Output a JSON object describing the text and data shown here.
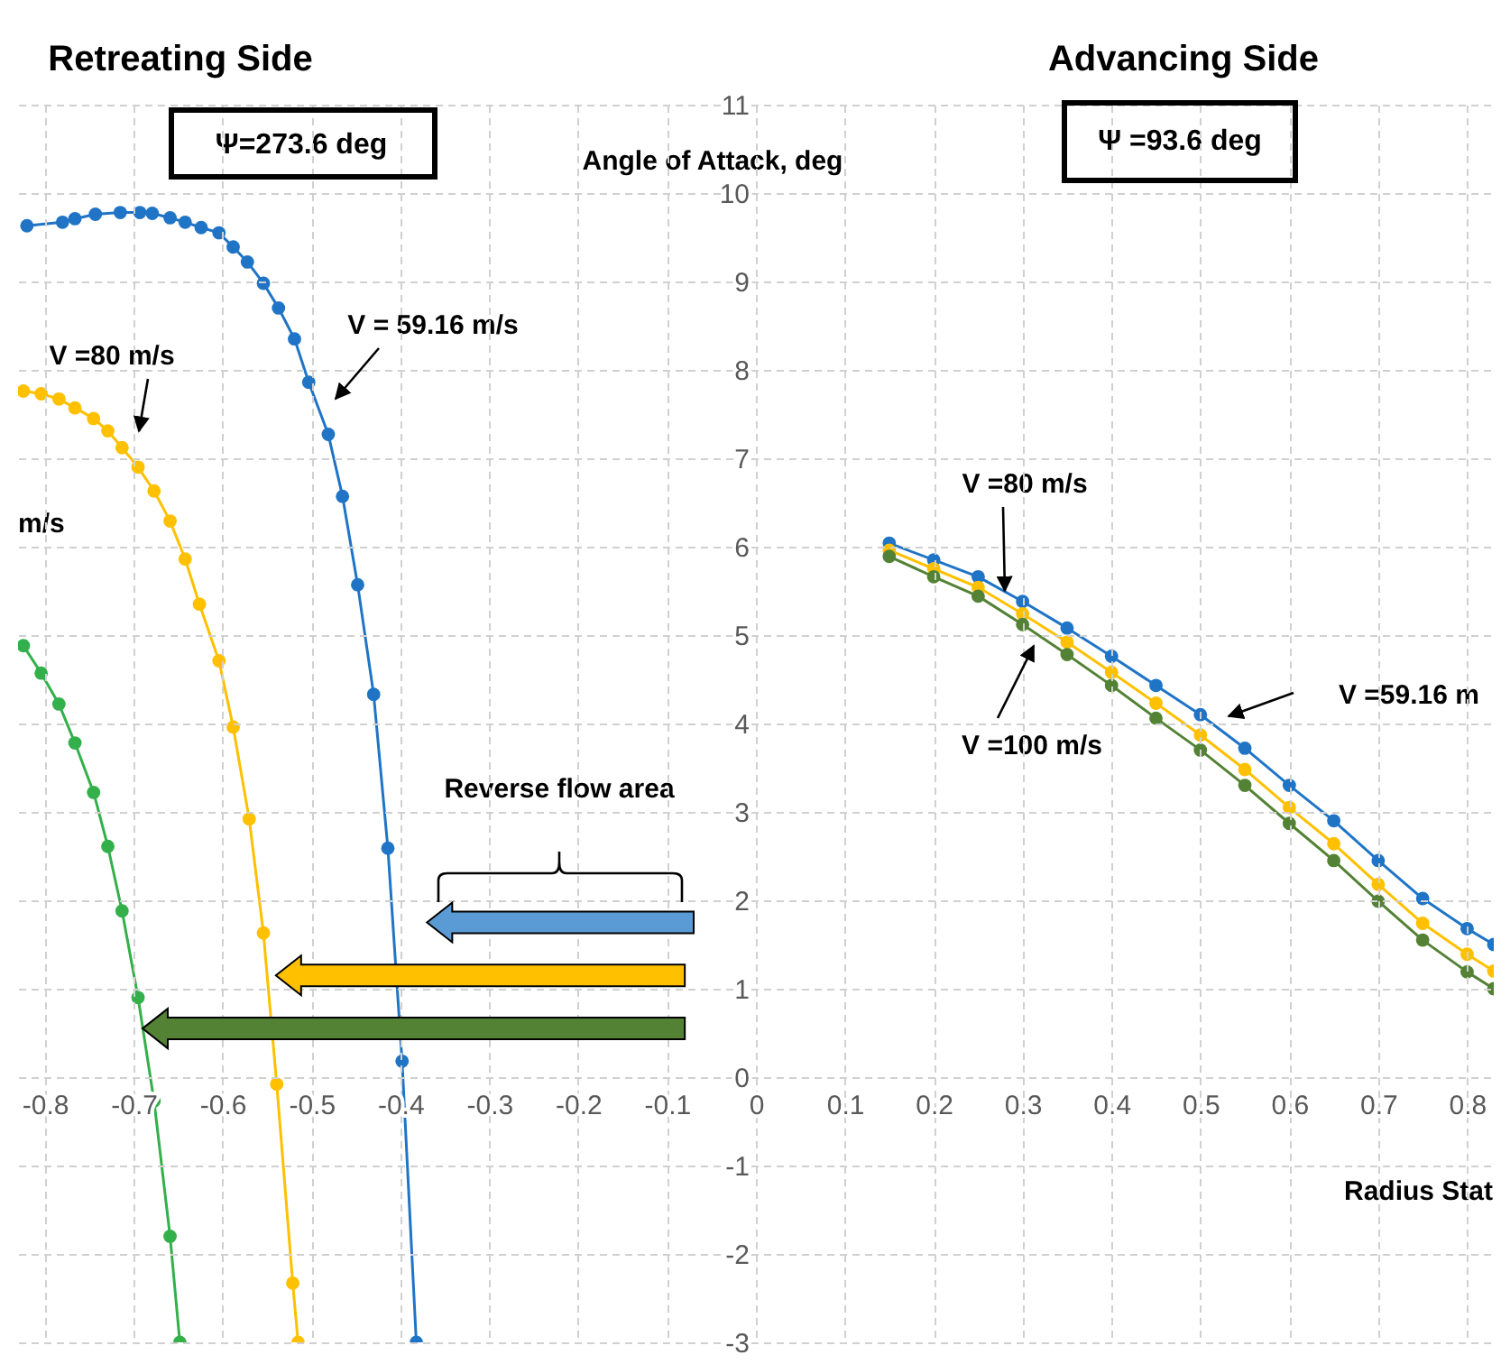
{
  "chart_data": {
    "type": "line",
    "xlabel": "Radius Stat",
    "ylabel": "Angle of Attack, deg",
    "xlim": [
      -0.83,
      0.83
    ],
    "xticks": [
      -0.8,
      -0.7,
      -0.6,
      -0.5,
      -0.4,
      -0.3,
      -0.2,
      -0.1,
      0,
      0.1,
      0.2,
      0.3,
      0.4,
      0.5,
      0.6,
      0.7,
      0.8
    ],
    "ylim": [
      -3,
      11
    ],
    "yticks": [
      -3,
      -2,
      -1,
      0,
      1,
      2,
      3,
      4,
      5,
      6,
      7,
      8,
      9,
      10,
      11
    ],
    "grid": true,
    "marker": "circle",
    "series": [
      {
        "color": "#1f74c6",
        "x": [
          -0.82,
          -0.78,
          -0.766,
          -0.743,
          -0.715,
          -0.693,
          -0.679,
          -0.659,
          -0.642,
          -0.624,
          -0.604,
          -0.588,
          -0.572,
          -0.554,
          -0.537,
          -0.519,
          -0.503,
          -0.481,
          -0.465,
          -0.448,
          -0.43,
          -0.414,
          -0.398,
          -0.382
        ],
        "values": [
          9.63,
          9.67,
          9.71,
          9.76,
          9.78,
          9.78,
          9.77,
          9.72,
          9.67,
          9.61,
          9.55,
          9.39,
          9.22,
          8.98,
          8.7,
          8.35,
          7.86,
          7.27,
          6.57,
          5.57,
          4.33,
          2.59,
          0.18,
          -3
        ]
      },
      {
        "color": "#ffc000",
        "x": [
          -0.824,
          -0.804,
          -0.784,
          -0.766,
          -0.745,
          -0.729,
          -0.713,
          -0.695,
          -0.677,
          -0.659,
          -0.642,
          -0.626,
          -0.604,
          -0.588,
          -0.57,
          -0.554,
          -0.539,
          -0.521,
          -0.515
        ],
        "values": [
          7.76,
          7.73,
          7.67,
          7.57,
          7.45,
          7.31,
          7.12,
          6.9,
          6.63,
          6.29,
          5.86,
          5.35,
          4.71,
          3.96,
          2.92,
          1.63,
          -0.08,
          -2.33,
          -3
        ]
      },
      {
        "color": "#33b04a",
        "x": [
          -0.824,
          -0.804,
          -0.784,
          -0.766,
          -0.745,
          -0.729,
          -0.713,
          -0.695,
          -0.677,
          -0.659,
          -0.648
        ],
        "values": [
          4.88,
          4.57,
          4.22,
          3.78,
          3.22,
          2.61,
          1.88,
          0.9,
          -0.27,
          -1.8,
          -3
        ]
      },
      {
        "color": "#1f74c6",
        "x": [
          0.15,
          0.2,
          0.25,
          0.3,
          0.35,
          0.4,
          0.45,
          0.5,
          0.55,
          0.6,
          0.65,
          0.7,
          0.75,
          0.8,
          0.83
        ],
        "values": [
          6.04,
          5.85,
          5.66,
          5.38,
          5.08,
          4.76,
          4.43,
          4.1,
          3.72,
          3.3,
          2.9,
          2.45,
          2.02,
          1.68,
          1.5
        ]
      },
      {
        "color": "#ffc000",
        "x": [
          0.15,
          0.2,
          0.25,
          0.3,
          0.35,
          0.4,
          0.45,
          0.5,
          0.55,
          0.6,
          0.65,
          0.7,
          0.75,
          0.8,
          0.83
        ],
        "values": [
          5.96,
          5.75,
          5.54,
          5.24,
          4.92,
          4.58,
          4.23,
          3.87,
          3.48,
          3.05,
          2.64,
          2.18,
          1.74,
          1.39,
          1.2
        ]
      },
      {
        "color": "#548235",
        "x": [
          0.15,
          0.2,
          0.25,
          0.3,
          0.35,
          0.4,
          0.45,
          0.5,
          0.55,
          0.6,
          0.65,
          0.7,
          0.75,
          0.8,
          0.83
        ],
        "values": [
          5.89,
          5.66,
          5.44,
          5.12,
          4.78,
          4.43,
          4.06,
          3.7,
          3.3,
          2.87,
          2.45,
          1.99,
          1.55,
          1.19,
          1.0
        ]
      }
    ],
    "annotations": [
      "Retreating Side",
      "Ψ=273.6 deg",
      "Advancing Side",
      "Ψ =93.6 deg",
      "V = 59.16 m/s",
      "V =80 m/s",
      "m/s",
      {
        "text": "V =80 m/s",
        "x": 0.28,
        "y": 5.5
      },
      "V =100 m/s",
      "V =59.16 m",
      "Reverse flow area"
    ]
  }
}
